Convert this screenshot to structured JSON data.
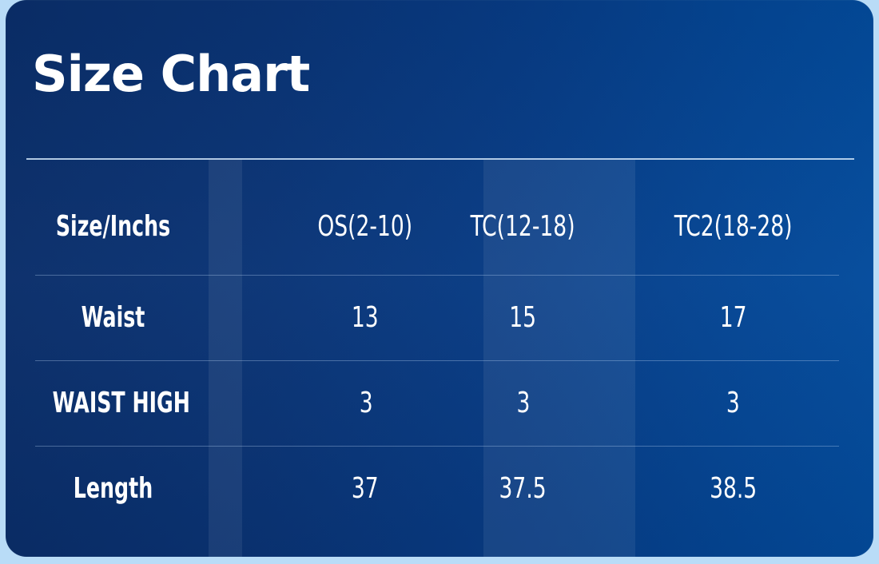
{
  "title": "Size Chart",
  "header": [
    "Size/Inchs",
    "OS(2-10)",
    "TC(12-18)",
    "TC2(18-28)"
  ],
  "rows": [
    {
      "label": "Waist",
      "values": [
        "13",
        "15",
        "17"
      ]
    },
    {
      "label": "WAIST HIGH",
      "values": [
        "3",
        "3",
        "3"
      ]
    },
    {
      "label": "Length",
      "values": [
        "37",
        "37.5",
        "38.5"
      ]
    }
  ],
  "colors": {
    "background": "#b9dcf7",
    "card": "#073c86",
    "text": "#ffffff"
  }
}
